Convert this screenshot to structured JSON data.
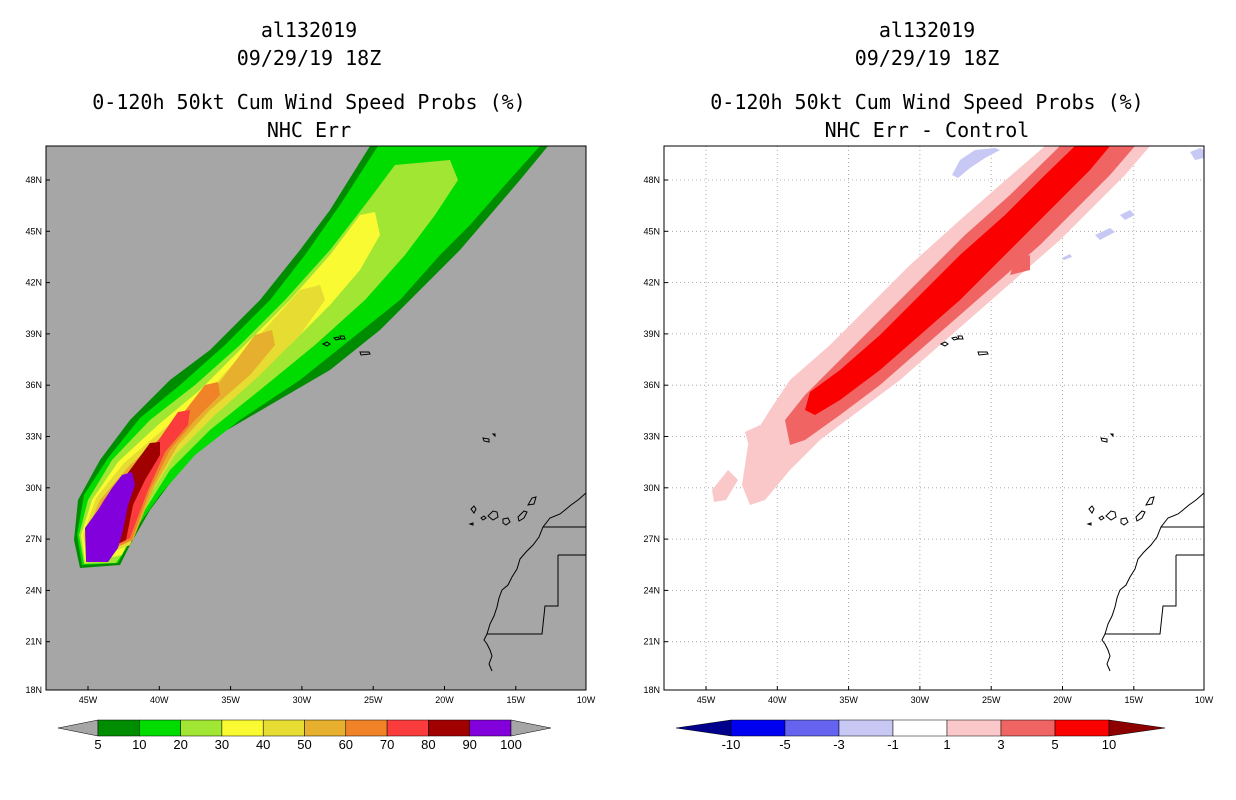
{
  "left_panel": {
    "storm_id": "al132019",
    "date": "09/29/19 18Z",
    "product": "0-120h 50kt Cum Wind Speed Probs (%)",
    "subtitle": "NHC Err",
    "colorbar": {
      "ticks": [
        "5",
        "10",
        "20",
        "30",
        "40",
        "50",
        "60",
        "70",
        "80",
        "90",
        "100"
      ],
      "colors": [
        "#008c00",
        "#00dc00",
        "#a0e632",
        "#fafa32",
        "#e6dc32",
        "#e6af2d",
        "#f08228",
        "#fa3c3c",
        "#a00000",
        "#8200dc"
      ],
      "end_color": "#a6a6a6"
    }
  },
  "right_panel": {
    "storm_id": "al132019",
    "date": "09/29/19 18Z",
    "product": "0-120h 50kt Cum Wind Speed Probs (%)",
    "subtitle": "NHC Err - Control",
    "colorbar": {
      "ticks": [
        "-10",
        "-5",
        "-3",
        "-1",
        "1",
        "3",
        "5",
        "10"
      ],
      "colors": [
        "#0000f0",
        "#6464f0",
        "#c8c8f5",
        "#ffffff",
        "#fac8c8",
        "#f06464",
        "#fa0000"
      ],
      "low_color": "#00008c",
      "high_color": "#8c0000"
    }
  },
  "map": {
    "lat_labels": [
      "48N",
      "45N",
      "42N",
      "39N",
      "36N",
      "33N",
      "30N",
      "27N",
      "24N",
      "21N",
      "18N"
    ],
    "lon_labels": [
      "45W",
      "40W",
      "35W",
      "30W",
      "25W",
      "20W",
      "15W",
      "10W"
    ],
    "background_color": "#a6a6a6",
    "coast_color": "#000000"
  }
}
